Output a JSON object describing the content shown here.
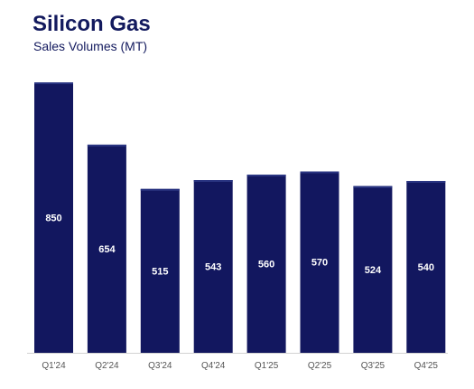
{
  "colors": {
    "title": "#131a5e",
    "bar": "#12175f",
    "bar_cap": "#2a3582",
    "axis": "#d3d3d3"
  },
  "chart_data": {
    "type": "bar",
    "title": "Silicon Gas",
    "subtitle": "Sales Volumes (MT)",
    "categories": [
      "Q1'24",
      "Q2'24",
      "Q3'24",
      "Q4'24",
      "Q1'25",
      "Q2'25",
      "Q3'25",
      "Q4'25"
    ],
    "values": [
      850,
      654,
      515,
      543,
      560,
      570,
      524,
      540
    ],
    "ylim": [
      0,
      850
    ],
    "grid": false,
    "legend": "none"
  }
}
